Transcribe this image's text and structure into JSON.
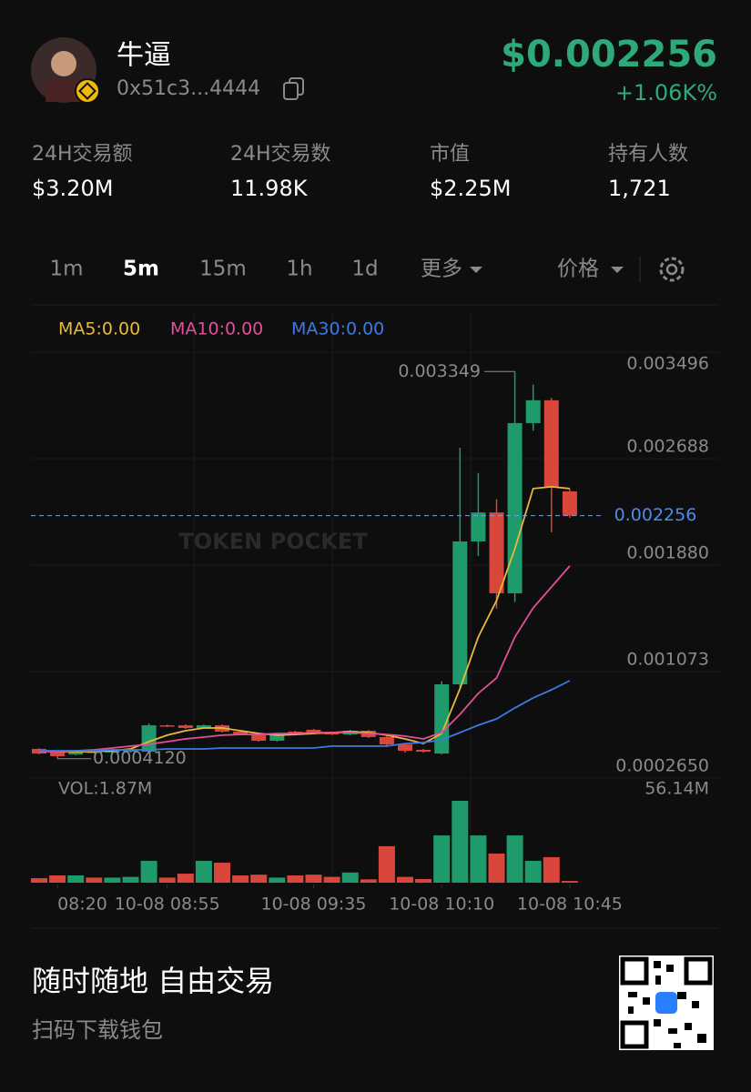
{
  "header": {
    "name": "牛逼",
    "address": "0x51c3...4444",
    "price": "$0.002256",
    "change": "+1.06K%"
  },
  "stats": [
    {
      "label": "24H交易额",
      "value": "$3.20M"
    },
    {
      "label": "24H交易数",
      "value": "11.98K"
    },
    {
      "label": "市值",
      "value": "$2.25M"
    },
    {
      "label": "持有人数",
      "value": "1,721"
    }
  ],
  "tabs": [
    "1m",
    "5m",
    "15m",
    "1h",
    "1d",
    "更多"
  ],
  "price_menu": "价格",
  "chart_data": {
    "type": "candlestick",
    "up_color": "#1f9a6b",
    "down_color": "#d9463b",
    "open": [
      0.000486,
      0.000465,
      0.000444,
      0.000465,
      0.000458,
      0.000465,
      0.000465,
      0.000665,
      0.000665,
      0.000645,
      0.000665,
      0.000617,
      0.000596,
      0.000548,
      0.000617,
      0.000631,
      0.00061,
      0.000596,
      0.000624,
      0.000576,
      0.00052,
      0.000479,
      0.000451,
      0.000976,
      0.00206,
      0.00228,
      0.001667,
      0.002958,
      0.003131,
      0.00244
    ],
    "high": [
      0.000493,
      0.000472,
      0.000472,
      0.000472,
      0.000479,
      0.000486,
      0.000679,
      0.000672,
      0.000672,
      0.000672,
      0.000672,
      0.000624,
      0.000603,
      0.000603,
      0.000624,
      0.000638,
      0.000617,
      0.000631,
      0.000631,
      0.00059,
      0.000527,
      0.000486,
      0.001,
      0.00277,
      0.00258,
      0.00238,
      0.003349,
      0.00325,
      0.00315,
      0.00246
    ],
    "low": [
      0.000444,
      0.000412,
      0.000437,
      0.000451,
      0.000451,
      0.000458,
      0.000458,
      0.000651,
      0.000638,
      0.000638,
      0.00061,
      0.00059,
      0.000541,
      0.000541,
      0.000596,
      0.000596,
      0.00059,
      0.00059,
      0.000569,
      0.0005,
      0.000458,
      0.000458,
      0.000444,
      0.00095,
      0.00195,
      0.00155,
      0.0016,
      0.0029,
      0.00213,
      0.00224
    ],
    "close": [
      0.000451,
      0.000431,
      0.000465,
      0.000458,
      0.000472,
      0.000479,
      0.000665,
      0.000658,
      0.000645,
      0.000665,
      0.000617,
      0.000596,
      0.000548,
      0.000596,
      0.000603,
      0.000603,
      0.000596,
      0.000624,
      0.000576,
      0.00052,
      0.000472,
      0.000465,
      0.000976,
      0.00206,
      0.00228,
      0.001667,
      0.002958,
      0.003131,
      0.002475,
      0.002256
    ],
    "volume": [
      3.1,
      5,
      5,
      3.5,
      3.5,
      4,
      15,
      3.5,
      6.2,
      15,
      13.7,
      5,
      5.5,
      3.5,
      5,
      5.5,
      4,
      7,
      2.3,
      25,
      4,
      2.5,
      32.4,
      56.14,
      32.4,
      20,
      32.4,
      15,
      17.5,
      1.2
    ],
    "ma": [
      {
        "name": "MA5:0.00",
        "color": "#e8b93a",
        "values": [
          null,
          0.000465,
          0.000465,
          0.000465,
          0.000472,
          0.000486,
          0.000541,
          0.00059,
          0.000624,
          0.000645,
          0.000645,
          0.000624,
          0.000603,
          0.00059,
          0.000596,
          0.000603,
          0.00061,
          0.000617,
          0.00061,
          0.00059,
          0.000562,
          0.000527,
          0.000603,
          0.000942,
          0.001335,
          0.001612,
          0.002005,
          0.002461,
          0.002475,
          0.002461
        ]
      },
      {
        "name": "MA10:0.00",
        "color": "#e0509a",
        "values": [
          0.000465,
          0.000465,
          0.000472,
          0.000479,
          0.000493,
          0.000507,
          0.000521,
          0.000541,
          0.000562,
          0.000576,
          0.00059,
          0.000596,
          0.000596,
          0.000603,
          0.000603,
          0.00061,
          0.00061,
          0.00061,
          0.000603,
          0.000596,
          0.000583,
          0.000562,
          0.00061,
          0.000748,
          0.000907,
          0.001025,
          0.001335,
          0.001556,
          0.001715,
          0.001874
        ]
      },
      {
        "name": "MA30:0.00",
        "color": "#3a7be0",
        "values": [
          0.000472,
          0.000472,
          0.000472,
          0.000472,
          0.000479,
          0.000479,
          0.000479,
          0.000486,
          0.000486,
          0.000486,
          0.000493,
          0.000493,
          0.000493,
          0.000493,
          0.000493,
          0.000493,
          0.000507,
          0.000507,
          0.000507,
          0.000507,
          0.000527,
          0.000534,
          0.000555,
          0.00061,
          0.000666,
          0.000714,
          0.000797,
          0.000873,
          0.000935,
          0.001004
        ]
      }
    ],
    "ylim": [
      0.000265,
      0.003496
    ],
    "yticks": [
      0.003496,
      0.002688,
      {
        "value": 0.00188,
        "label": "0.001880"
      },
      0.001073,
      {
        "value": 0.000265,
        "label": "0.0002650"
      }
    ],
    "low_label": "0.0004120",
    "vol_legend": "VOL:1.87M",
    "vol_ylim": [
      0,
      56.14
    ],
    "vol_yticks": [
      {
        "value": 56.14,
        "label": "56.14M"
      }
    ],
    "xticks": [
      {
        "value": 1,
        "label": "08:20"
      },
      {
        "value": 7,
        "label": "10-08 08:55"
      },
      {
        "value": 15,
        "label": "10-08 09:35"
      },
      {
        "value": 22,
        "label": "10-08 10:10"
      },
      {
        "value": 29,
        "label": "10-08 10:45"
      }
    ]
  },
  "footer": {
    "slogan": "随时随地 自由交易",
    "subtitle": "扫码下载钱包"
  }
}
